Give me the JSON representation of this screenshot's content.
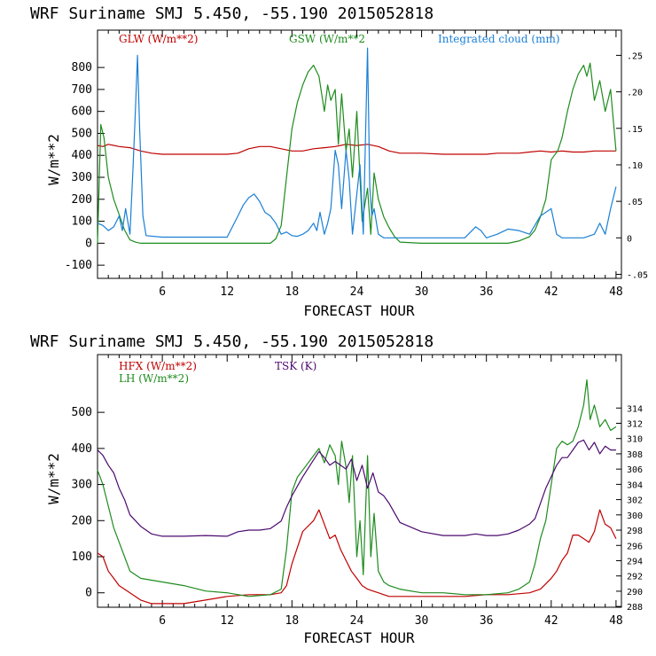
{
  "chart_data": [
    {
      "type": "line",
      "title": "WRF   Suriname SMJ   5.450, -55.190  2015052818",
      "xlabel": "FORECAST HOUR",
      "ylabel": "W/m**2",
      "xlim": [
        0,
        48.5
      ],
      "ylim": [
        -160,
        970
      ],
      "x_ticks": [
        6,
        12,
        18,
        24,
        30,
        36,
        42,
        48
      ],
      "y_ticks": [
        -100,
        0,
        100,
        200,
        300,
        400,
        500,
        600,
        700,
        800
      ],
      "y_right_label": "",
      "y_right_ticks": [
        {
          "v": 0.25,
          "label": ".25"
        },
        {
          "v": 0.2,
          "label": ".20"
        },
        {
          "v": 0.15,
          "label": ".15"
        },
        {
          "v": 0.1,
          "label": ".10"
        },
        {
          "v": 0.05,
          "label": ".05"
        },
        {
          "v": 0.0,
          "label": "0"
        },
        {
          "v": -0.05,
          "label": "-.05"
        }
      ],
      "y_right_lim": [
        -0.0555,
        0.2845
      ],
      "series": [
        {
          "name": "GLW (W/m**2)",
          "color": "#c00000",
          "axis": "left",
          "x": [
            0,
            0.5,
            1,
            2,
            3,
            4,
            5,
            6,
            8,
            10,
            12,
            13,
            14,
            15,
            16,
            17,
            18,
            19,
            20,
            21,
            22,
            23,
            24,
            25,
            26,
            27,
            28,
            30,
            32,
            34,
            36,
            37,
            38,
            39,
            40,
            41,
            42,
            43,
            44,
            45,
            46,
            47,
            48
          ],
          "values": [
            445,
            440,
            450,
            440,
            435,
            420,
            410,
            405,
            405,
            405,
            405,
            410,
            430,
            440,
            440,
            430,
            420,
            420,
            430,
            435,
            440,
            450,
            445,
            450,
            440,
            420,
            410,
            410,
            405,
            405,
            405,
            410,
            410,
            410,
            415,
            420,
            415,
            420,
            415,
            415,
            420,
            420,
            420
          ]
        },
        {
          "name": "GSW (W/m**2",
          "color": "#1e8c1e",
          "axis": "left",
          "x": [
            0,
            0.3,
            0.6,
            1,
            1.5,
            2,
            2.5,
            3,
            3.5,
            4,
            6,
            8,
            10,
            12,
            14,
            16,
            16.5,
            17,
            17.5,
            18,
            18.5,
            19,
            19.5,
            20,
            20.5,
            21,
            21.3,
            21.6,
            22,
            22.3,
            22.6,
            23,
            23.3,
            23.6,
            24,
            24.5,
            25,
            25.3,
            25.6,
            26,
            26.5,
            27,
            27.5,
            28,
            30,
            32,
            34,
            36,
            38,
            39,
            40,
            40.5,
            41,
            41.5,
            42,
            42.3,
            42.6,
            43,
            43.5,
            44,
            44.5,
            45,
            45.3,
            45.6,
            46,
            46.5,
            47,
            47.5,
            48
          ],
          "values": [
            0,
            540,
            480,
            300,
            200,
            130,
            60,
            15,
            5,
            0,
            0,
            0,
            0,
            0,
            0,
            0,
            20,
            80,
            300,
            520,
            640,
            720,
            780,
            810,
            760,
            600,
            720,
            650,
            700,
            450,
            680,
            420,
            520,
            300,
            600,
            100,
            250,
            40,
            320,
            200,
            120,
            70,
            30,
            5,
            0,
            0,
            0,
            0,
            0,
            10,
            30,
            60,
            120,
            200,
            380,
            400,
            420,
            480,
            600,
            700,
            770,
            810,
            760,
            820,
            650,
            740,
            600,
            700,
            420
          ]
        },
        {
          "name": "Integrated cloud (mm)",
          "color": "#1a7fd6",
          "axis": "right",
          "x": [
            0,
            0.5,
            1,
            1.5,
            2,
            2.3,
            2.6,
            3,
            3.3,
            3.5,
            3.7,
            3.9,
            4.2,
            4.5,
            6,
            8,
            10,
            12,
            13,
            13.5,
            14,
            14.5,
            15,
            15.5,
            16,
            16.5,
            17,
            17.5,
            18,
            18.5,
            19,
            19.5,
            20,
            20.3,
            20.6,
            21,
            21.3,
            21.6,
            22,
            22.3,
            22.6,
            23,
            23.3,
            23.6,
            24,
            24.3,
            24.6,
            25,
            25.2,
            25.4,
            25.6,
            26,
            26.5,
            27,
            28,
            30,
            32,
            34,
            35,
            35.5,
            36,
            37,
            38,
            39,
            40,
            41,
            42,
            42.5,
            43,
            44,
            45,
            46,
            46.5,
            47,
            47.5,
            48
          ],
          "values": [
            0.02,
            0.017,
            0.01,
            0.015,
            0.03,
            0.01,
            0.04,
            0.005,
            0.1,
            0.17,
            0.25,
            0.15,
            0.03,
            0.003,
            0.001,
            0.001,
            0.001,
            0.001,
            0.03,
            0.045,
            0.055,
            0.06,
            0.05,
            0.035,
            0.03,
            0.02,
            0.005,
            0.008,
            0.003,
            0.002,
            0.005,
            0.01,
            0.02,
            0.01,
            0.035,
            0.005,
            0.02,
            0.04,
            0.12,
            0.1,
            0.04,
            0.12,
            0.08,
            0.005,
            0.06,
            0.1,
            0.005,
            0.26,
            0.07,
            0.03,
            0.04,
            0.005,
            0.0,
            0.0,
            0.0,
            0.0,
            0.0,
            0.0,
            0.015,
            0.01,
            0.0,
            0.005,
            0.012,
            0.01,
            0.005,
            0.03,
            0.04,
            0.005,
            0.0,
            0.0,
            0.0,
            0.005,
            0.02,
            0.005,
            0.04,
            0.07
          ]
        }
      ],
      "legend": [
        {
          "label": "GLW (W/m**2)",
          "color": "#c00000"
        },
        {
          "label": "GSW (W/m**2",
          "color": "#1e8c1e"
        },
        {
          "label": "Integrated cloud (mm)",
          "color": "#1a7fd6"
        }
      ]
    },
    {
      "type": "line",
      "title": "WRF   Suriname SMJ   5.450, -55.190  2015052818",
      "xlabel": "FORECAST HOUR",
      "ylabel": "W/m**2",
      "xlim": [
        0,
        48.5
      ],
      "ylim": [
        -40,
        660
      ],
      "x_ticks": [
        6,
        12,
        18,
        24,
        30,
        36,
        42,
        48
      ],
      "y_ticks": [
        0,
        100,
        200,
        300,
        400,
        500
      ],
      "y_right_label": "",
      "y_right_ticks": [
        {
          "v": 288,
          "label": "288"
        },
        {
          "v": 290,
          "label": "290"
        },
        {
          "v": 292,
          "label": "292"
        },
        {
          "v": 294,
          "label": "294"
        },
        {
          "v": 296,
          "label": "296"
        },
        {
          "v": 298,
          "label": "298"
        },
        {
          "v": 300,
          "label": "300"
        },
        {
          "v": 302,
          "label": "302"
        },
        {
          "v": 304,
          "label": "304"
        },
        {
          "v": 306,
          "label": "306"
        },
        {
          "v": 308,
          "label": "308"
        },
        {
          "v": 310,
          "label": "310"
        },
        {
          "v": 312,
          "label": "312"
        },
        {
          "v": 314,
          "label": "314"
        }
      ],
      "y_right_lim": [
        287.9,
        321.0
      ],
      "series": [
        {
          "name": "HFX (W/m**2)",
          "color": "#c00000",
          "axis": "left",
          "x": [
            0,
            0.5,
            1,
            1.5,
            2,
            3,
            4,
            5,
            6,
            8,
            10,
            12,
            14,
            16,
            17,
            17.5,
            18,
            19,
            20,
            20.5,
            21,
            21.5,
            22,
            22.5,
            23,
            23.5,
            24,
            24.5,
            25,
            25.5,
            26,
            26.5,
            27,
            28,
            30,
            32,
            34,
            36,
            38,
            40,
            41,
            42,
            42.5,
            43,
            43.5,
            44,
            44.5,
            45,
            45.5,
            46,
            46.5,
            47,
            47.5,
            48
          ],
          "values": [
            110,
            100,
            60,
            40,
            20,
            0,
            -20,
            -30,
            -30,
            -30,
            -20,
            -10,
            -5,
            -5,
            0,
            20,
            80,
            170,
            200,
            230,
            190,
            150,
            160,
            120,
            90,
            60,
            40,
            20,
            10,
            5,
            0,
            -5,
            -10,
            -10,
            -10,
            -10,
            -10,
            -5,
            -5,
            0,
            10,
            40,
            60,
            90,
            110,
            160,
            160,
            150,
            140,
            170,
            230,
            190,
            180,
            150
          ]
        },
        {
          "name": "LH (W/m**2)",
          "color": "#1e8c1e",
          "axis": "left",
          "x": [
            0,
            0.5,
            1,
            1.5,
            2,
            2.5,
            3,
            4,
            6,
            8,
            10,
            12,
            14,
            16,
            17,
            17.5,
            18,
            18.5,
            19,
            20,
            20.5,
            21,
            21.5,
            22,
            22.3,
            22.6,
            23,
            23.3,
            23.6,
            24,
            24.3,
            24.6,
            25,
            25.3,
            25.6,
            26,
            26.5,
            27,
            28,
            30,
            32,
            34,
            36,
            38,
            39,
            40,
            40.5,
            41,
            41.5,
            42,
            42.5,
            43,
            43.5,
            44,
            44.5,
            45,
            45.3,
            45.6,
            46,
            46.5,
            47,
            47.5,
            48
          ],
          "values": [
            340,
            300,
            240,
            180,
            140,
            100,
            60,
            40,
            30,
            20,
            5,
            0,
            -10,
            -5,
            10,
            120,
            280,
            320,
            340,
            380,
            400,
            360,
            410,
            380,
            300,
            420,
            350,
            250,
            380,
            100,
            200,
            50,
            380,
            100,
            220,
            60,
            30,
            20,
            10,
            0,
            0,
            -5,
            -5,
            0,
            10,
            30,
            80,
            150,
            200,
            300,
            400,
            420,
            410,
            420,
            460,
            520,
            590,
            480,
            520,
            460,
            480,
            450,
            460
          ]
        },
        {
          "name": "TSK (K)",
          "color": "#4b0a6e",
          "axis": "right",
          "x": [
            0,
            0.5,
            1,
            1.5,
            2,
            2.5,
            3,
            4,
            5,
            6,
            8,
            10,
            12,
            13,
            14,
            15,
            16,
            17,
            17.5,
            18,
            19,
            20,
            20.5,
            21,
            21.5,
            22,
            22.5,
            23,
            23.5,
            24,
            24.5,
            25,
            25.5,
            26,
            26.5,
            27,
            28,
            30,
            32,
            34,
            35,
            36,
            37,
            38,
            39,
            40,
            40.5,
            41,
            41.5,
            42,
            42.5,
            43,
            43.5,
            44,
            44.5,
            45,
            45.5,
            46,
            46.5,
            47,
            47.5,
            48
          ],
          "values": [
            308.5,
            307.8,
            306.5,
            305.5,
            303.5,
            302,
            300,
            298.5,
            297.5,
            297.2,
            297.2,
            297.3,
            297.2,
            297.8,
            298,
            298,
            298.2,
            299.2,
            301,
            302.5,
            305,
            307.2,
            308.3,
            307.5,
            306.5,
            307,
            306.5,
            306,
            307.3,
            304.5,
            306.5,
            303.5,
            305.5,
            303,
            302.5,
            301.5,
            299,
            297.8,
            297.3,
            297.3,
            297.5,
            297.3,
            297.3,
            297.5,
            298,
            298.8,
            299.5,
            301.5,
            303.5,
            305,
            306.5,
            307.5,
            307.5,
            308.5,
            309.5,
            309.8,
            308.5,
            309.5,
            308,
            309,
            308.5,
            308.5
          ]
        }
      ],
      "legend": [
        {
          "label": "HFX (W/m**2)",
          "color": "#c00000"
        },
        {
          "label": "LH  (W/m**2)",
          "color": "#1e8c1e"
        },
        {
          "label": "TSK (K)",
          "color": "#4b0a6e"
        }
      ]
    }
  ]
}
